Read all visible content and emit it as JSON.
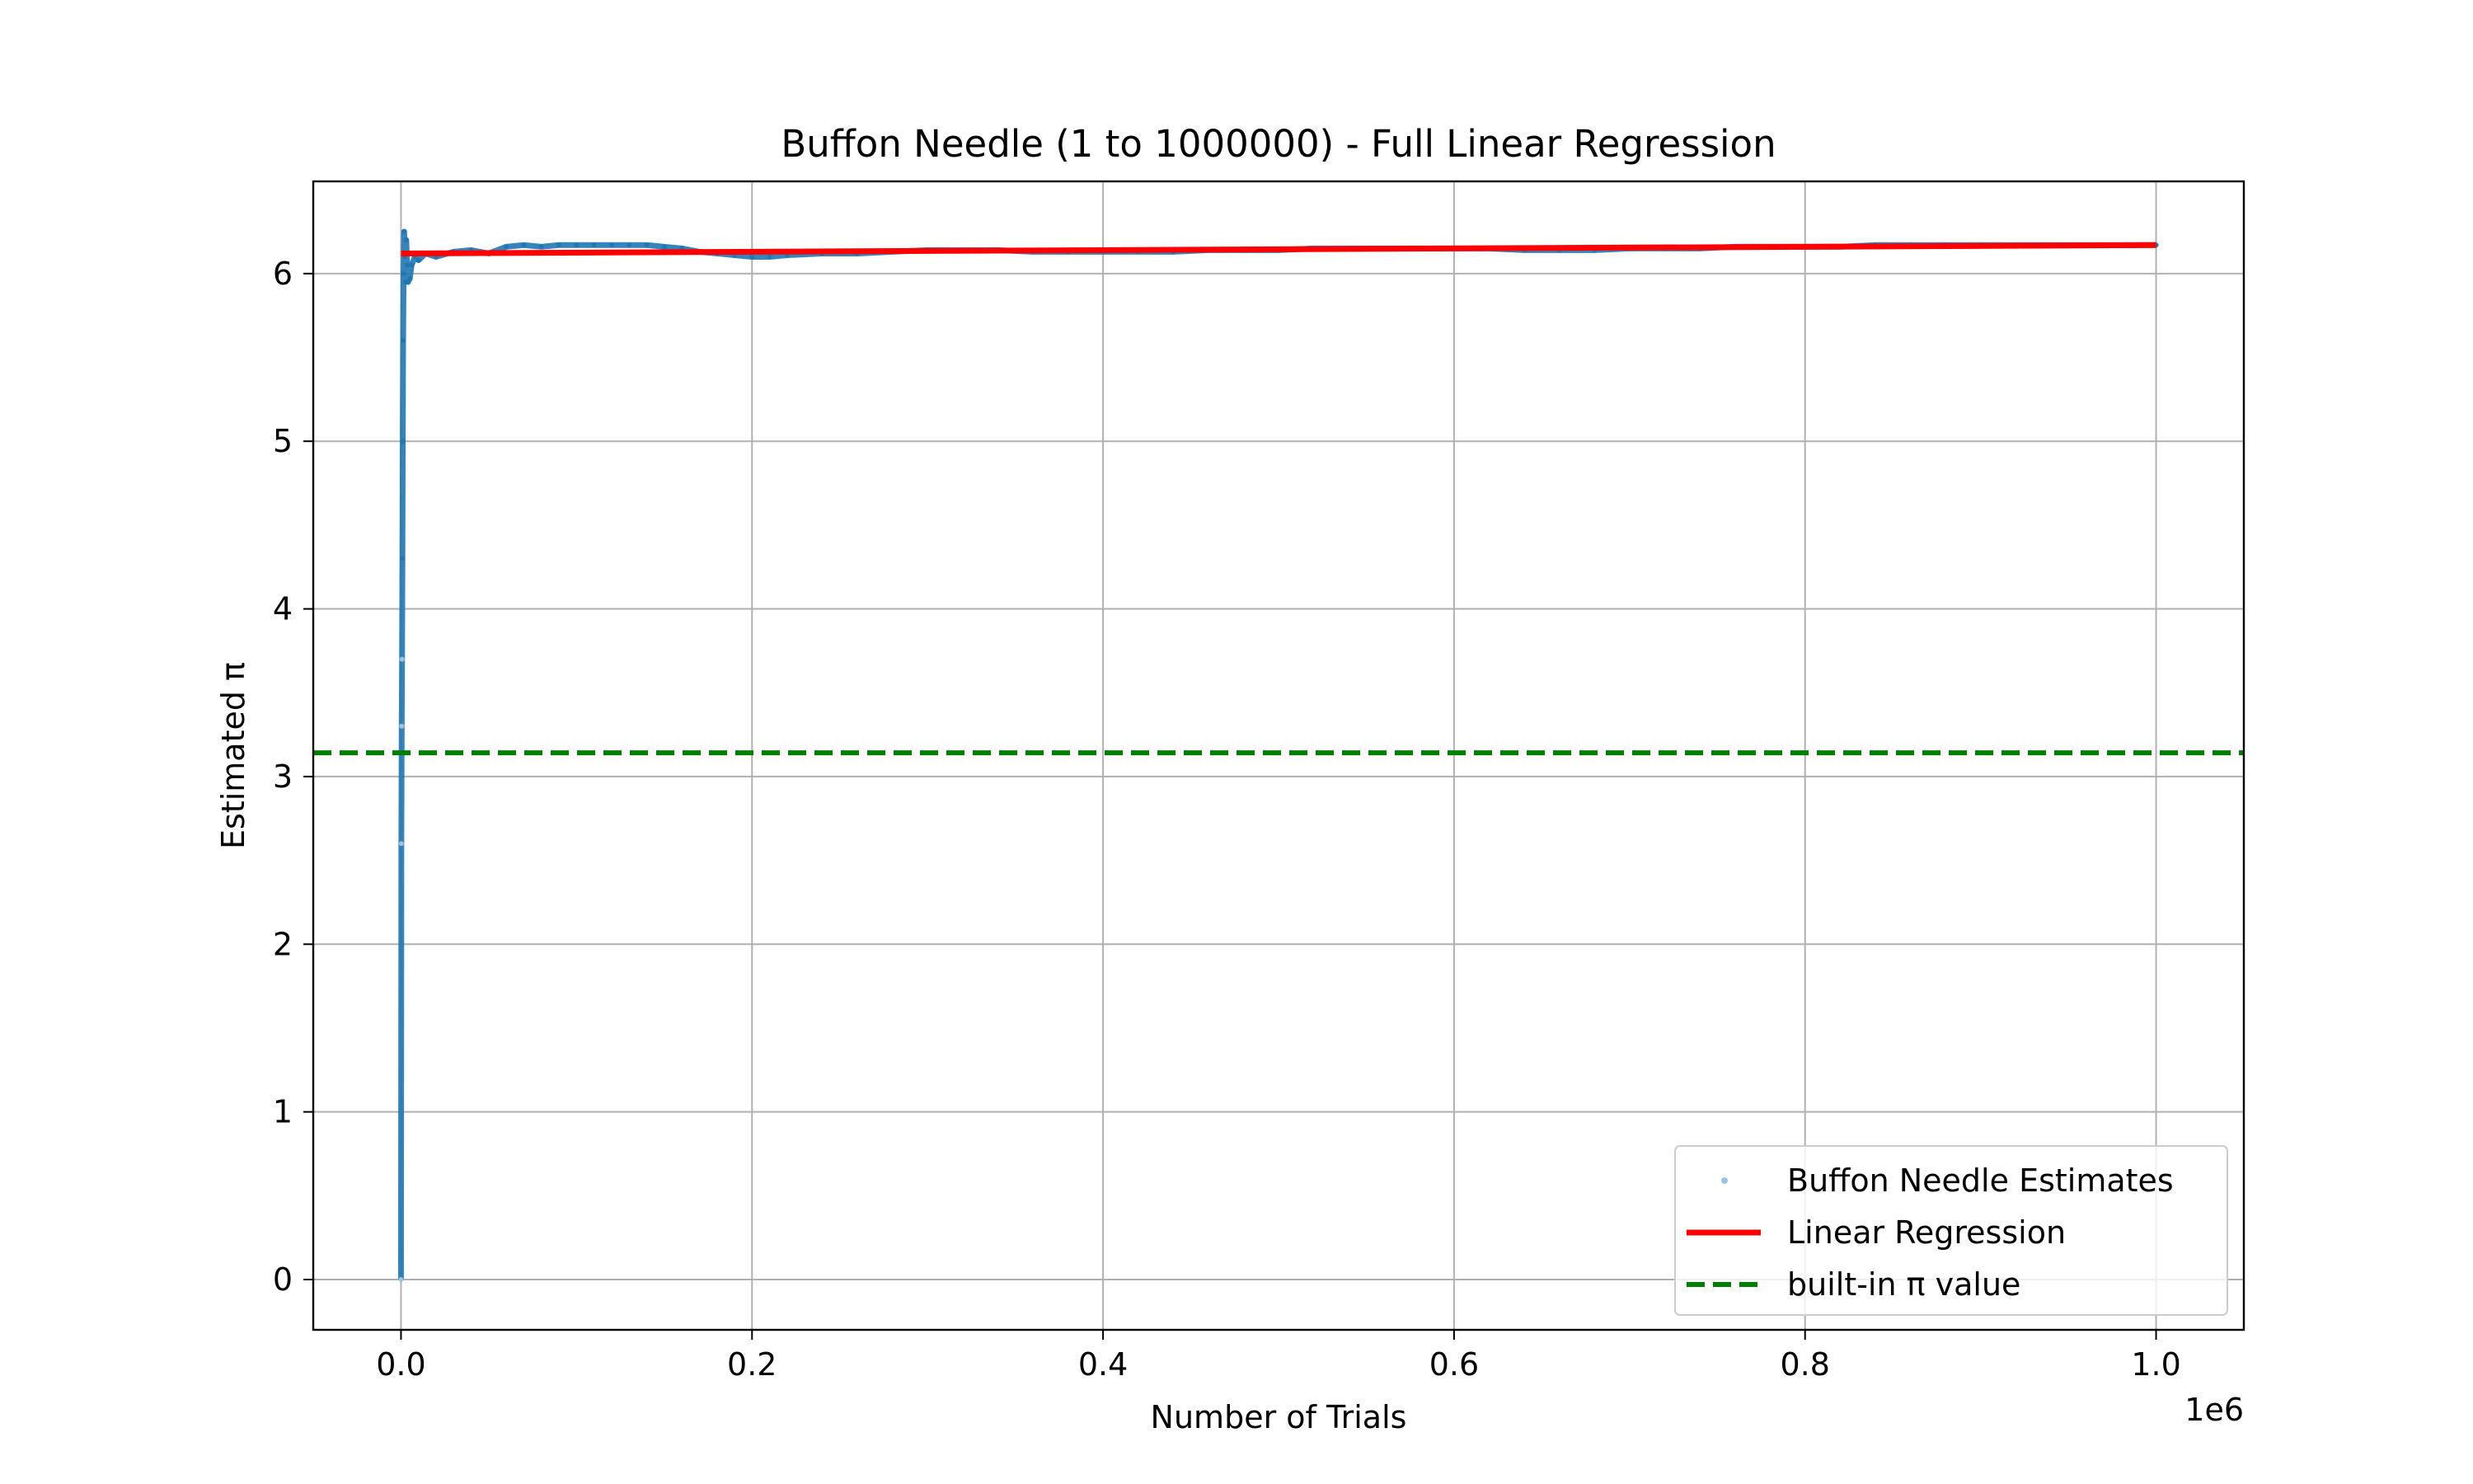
{
  "chart_data": {
    "type": "scatter",
    "title": "Buffon Needle (1 to 1000000) - Full Linear Regression",
    "xlabel": "Number of Trials",
    "ylabel": "Estimated π",
    "x_offset_label": "1e6",
    "x_scale": 1000000,
    "xlim": [
      -50000,
      1050000
    ],
    "ylim": [
      -0.3,
      6.55
    ],
    "x_ticks": [
      0,
      200000,
      400000,
      600000,
      800000,
      1000000
    ],
    "x_tick_labels": [
      "0.0",
      "0.2",
      "0.4",
      "0.6",
      "0.8",
      "1.0"
    ],
    "y_ticks": [
      0,
      1,
      2,
      3,
      4,
      5,
      6
    ],
    "y_tick_labels": [
      "0",
      "1",
      "2",
      "3",
      "4",
      "5",
      "6"
    ],
    "grid": true,
    "legend_position": "lower-right",
    "series": [
      {
        "name": "Buffon Needle Estimates",
        "kind": "scatter",
        "color": "#1f77b4",
        "x": [
          1,
          200,
          400,
          600,
          800,
          1000,
          1200,
          1500,
          1800,
          2200,
          2600,
          3000,
          3500,
          4000,
          5000,
          6000,
          8000,
          10000,
          14000,
          20000,
          30000,
          40000,
          50000,
          60000,
          70000,
          80000,
          90000,
          100000,
          110000,
          120000,
          130000,
          140000,
          150000,
          160000,
          170000,
          180000,
          190000,
          200000,
          210000,
          220000,
          240000,
          260000,
          280000,
          300000,
          320000,
          340000,
          360000,
          380000,
          400000,
          420000,
          440000,
          460000,
          480000,
          500000,
          520000,
          540000,
          560000,
          580000,
          600000,
          620000,
          640000,
          660000,
          680000,
          700000,
          720000,
          740000,
          760000,
          780000,
          800000,
          820000,
          840000,
          860000,
          880000,
          900000,
          920000,
          940000,
          960000,
          980000,
          1000000
        ],
        "y": [
          0.0,
          2.6,
          3.3,
          3.7,
          4.3,
          5.0,
          5.6,
          6.0,
          6.25,
          6.1,
          5.95,
          6.2,
          6.05,
          5.95,
          5.97,
          6.05,
          6.1,
          6.08,
          6.12,
          6.1,
          6.13,
          6.14,
          6.12,
          6.16,
          6.17,
          6.16,
          6.17,
          6.17,
          6.17,
          6.17,
          6.17,
          6.17,
          6.16,
          6.15,
          6.13,
          6.12,
          6.11,
          6.1,
          6.1,
          6.11,
          6.12,
          6.12,
          6.13,
          6.14,
          6.14,
          6.14,
          6.13,
          6.13,
          6.13,
          6.13,
          6.13,
          6.14,
          6.14,
          6.14,
          6.15,
          6.15,
          6.15,
          6.15,
          6.15,
          6.15,
          6.14,
          6.14,
          6.14,
          6.15,
          6.15,
          6.15,
          6.16,
          6.16,
          6.16,
          6.16,
          6.17,
          6.17,
          6.17,
          6.17,
          6.17,
          6.17,
          6.17,
          6.17,
          6.17
        ]
      },
      {
        "name": "Linear Regression",
        "kind": "line",
        "color": "#ff0000",
        "x": [
          1,
          1000000
        ],
        "y": [
          6.12,
          6.17
        ]
      },
      {
        "name": "built-in π value",
        "kind": "hline",
        "color": "#008000",
        "y": 3.14159
      }
    ]
  }
}
